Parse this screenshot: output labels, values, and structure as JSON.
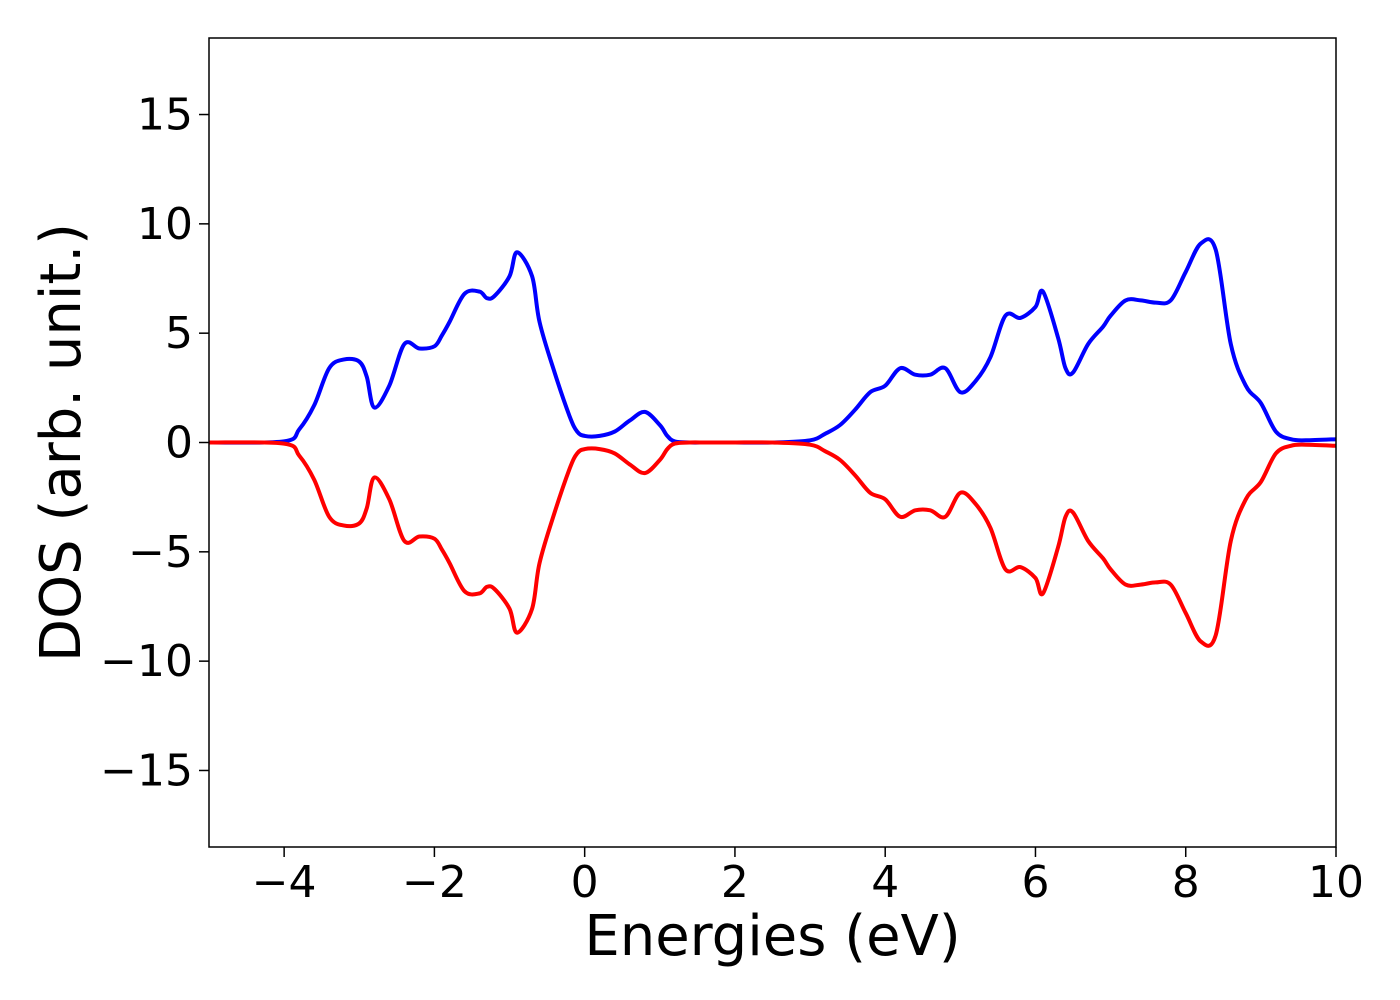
{
  "chart_data": {
    "type": "line",
    "title": "",
    "xlabel": "Energies (eV)",
    "ylabel": "DOS (arb. unit.)",
    "xlim": [
      -5,
      10
    ],
    "ylim": [
      -18.5,
      18.5
    ],
    "xticks": [
      -4,
      -2,
      0,
      2,
      4,
      6,
      8,
      10
    ],
    "xtick_labels": [
      "−4",
      "−2",
      "0",
      "2",
      "4",
      "6",
      "8",
      "10"
    ],
    "yticks": [
      15,
      10,
      5,
      0,
      -5,
      -10,
      -15
    ],
    "ytick_labels": [
      "15",
      "10",
      "5",
      "0",
      "−5",
      "−10",
      "−15"
    ],
    "grid": false,
    "legend": "none",
    "series": [
      {
        "color": "#0000ff",
        "x": [
          -5.0,
          -4.0,
          -3.8,
          -3.6,
          -3.4,
          -3.2,
          -3.0,
          -2.9,
          -2.8,
          -2.6,
          -2.4,
          -2.2,
          -2.0,
          -1.9,
          -1.8,
          -1.6,
          -1.4,
          -1.3,
          -1.2,
          -1.0,
          -0.9,
          -0.7,
          -0.6,
          -0.4,
          -0.2,
          -0.1,
          0.0,
          0.2,
          0.4,
          0.6,
          0.8,
          1.0,
          1.1,
          1.2,
          1.4,
          1.6,
          1.8,
          2.0,
          2.5,
          3.0,
          3.2,
          3.4,
          3.6,
          3.8,
          4.0,
          4.2,
          4.4,
          4.6,
          4.8,
          5.0,
          5.2,
          5.4,
          5.6,
          5.8,
          6.0,
          6.1,
          6.3,
          6.4,
          6.5,
          6.7,
          6.9,
          7.0,
          7.2,
          7.4,
          7.6,
          7.8,
          8.0,
          8.2,
          8.4,
          8.6,
          8.8,
          9.0,
          9.2,
          9.4,
          9.6,
          10.0
        ],
        "values": [
          0,
          0.05,
          0.6,
          1.7,
          3.4,
          3.8,
          3.7,
          3.0,
          1.6,
          2.6,
          4.5,
          4.3,
          4.4,
          4.9,
          5.5,
          6.8,
          6.9,
          6.6,
          6.7,
          7.6,
          8.7,
          7.6,
          5.5,
          3.2,
          1.2,
          0.5,
          0.3,
          0.3,
          0.5,
          1.0,
          1.4,
          0.8,
          0.3,
          0.05,
          0,
          0,
          0,
          0,
          0,
          0.1,
          0.4,
          0.8,
          1.5,
          2.3,
          2.6,
          3.4,
          3.1,
          3.1,
          3.4,
          2.3,
          2.8,
          3.9,
          5.8,
          5.7,
          6.2,
          6.9,
          4.8,
          3.4,
          3.2,
          4.5,
          5.3,
          5.8,
          6.5,
          6.5,
          6.4,
          6.5,
          7.8,
          9.1,
          8.8,
          4.5,
          2.6,
          1.8,
          0.5,
          0.15,
          0.1,
          0.15
        ]
      },
      {
        "color": "#ff0000",
        "x": [
          -5.0,
          -4.0,
          -3.8,
          -3.6,
          -3.4,
          -3.2,
          -3.0,
          -2.9,
          -2.8,
          -2.6,
          -2.4,
          -2.2,
          -2.0,
          -1.9,
          -1.8,
          -1.6,
          -1.4,
          -1.3,
          -1.2,
          -1.0,
          -0.9,
          -0.7,
          -0.6,
          -0.4,
          -0.2,
          -0.1,
          0.0,
          0.2,
          0.4,
          0.6,
          0.8,
          1.0,
          1.1,
          1.2,
          1.4,
          1.6,
          1.8,
          2.0,
          2.5,
          3.0,
          3.2,
          3.4,
          3.6,
          3.8,
          4.0,
          4.2,
          4.4,
          4.6,
          4.8,
          5.0,
          5.2,
          5.4,
          5.6,
          5.8,
          6.0,
          6.1,
          6.3,
          6.4,
          6.5,
          6.7,
          6.9,
          7.0,
          7.2,
          7.4,
          7.6,
          7.8,
          8.0,
          8.2,
          8.4,
          8.6,
          8.8,
          9.0,
          9.2,
          9.4,
          9.6,
          10.0
        ],
        "values": [
          0,
          -0.05,
          -0.6,
          -1.7,
          -3.4,
          -3.8,
          -3.7,
          -3.0,
          -1.6,
          -2.6,
          -4.5,
          -4.3,
          -4.4,
          -4.9,
          -5.5,
          -6.8,
          -6.9,
          -6.6,
          -6.7,
          -7.6,
          -8.7,
          -7.6,
          -5.5,
          -3.2,
          -1.2,
          -0.5,
          -0.3,
          -0.3,
          -0.5,
          -1.0,
          -1.4,
          -0.8,
          -0.3,
          -0.05,
          0,
          0,
          0,
          0,
          0,
          -0.1,
          -0.4,
          -0.8,
          -1.5,
          -2.3,
          -2.6,
          -3.4,
          -3.1,
          -3.1,
          -3.4,
          -2.3,
          -2.8,
          -3.9,
          -5.8,
          -5.7,
          -6.2,
          -6.9,
          -4.8,
          -3.4,
          -3.2,
          -4.5,
          -5.3,
          -5.8,
          -6.5,
          -6.5,
          -6.4,
          -6.5,
          -7.8,
          -9.1,
          -8.8,
          -4.5,
          -2.6,
          -1.8,
          -0.5,
          -0.15,
          -0.1,
          -0.15
        ]
      }
    ]
  }
}
